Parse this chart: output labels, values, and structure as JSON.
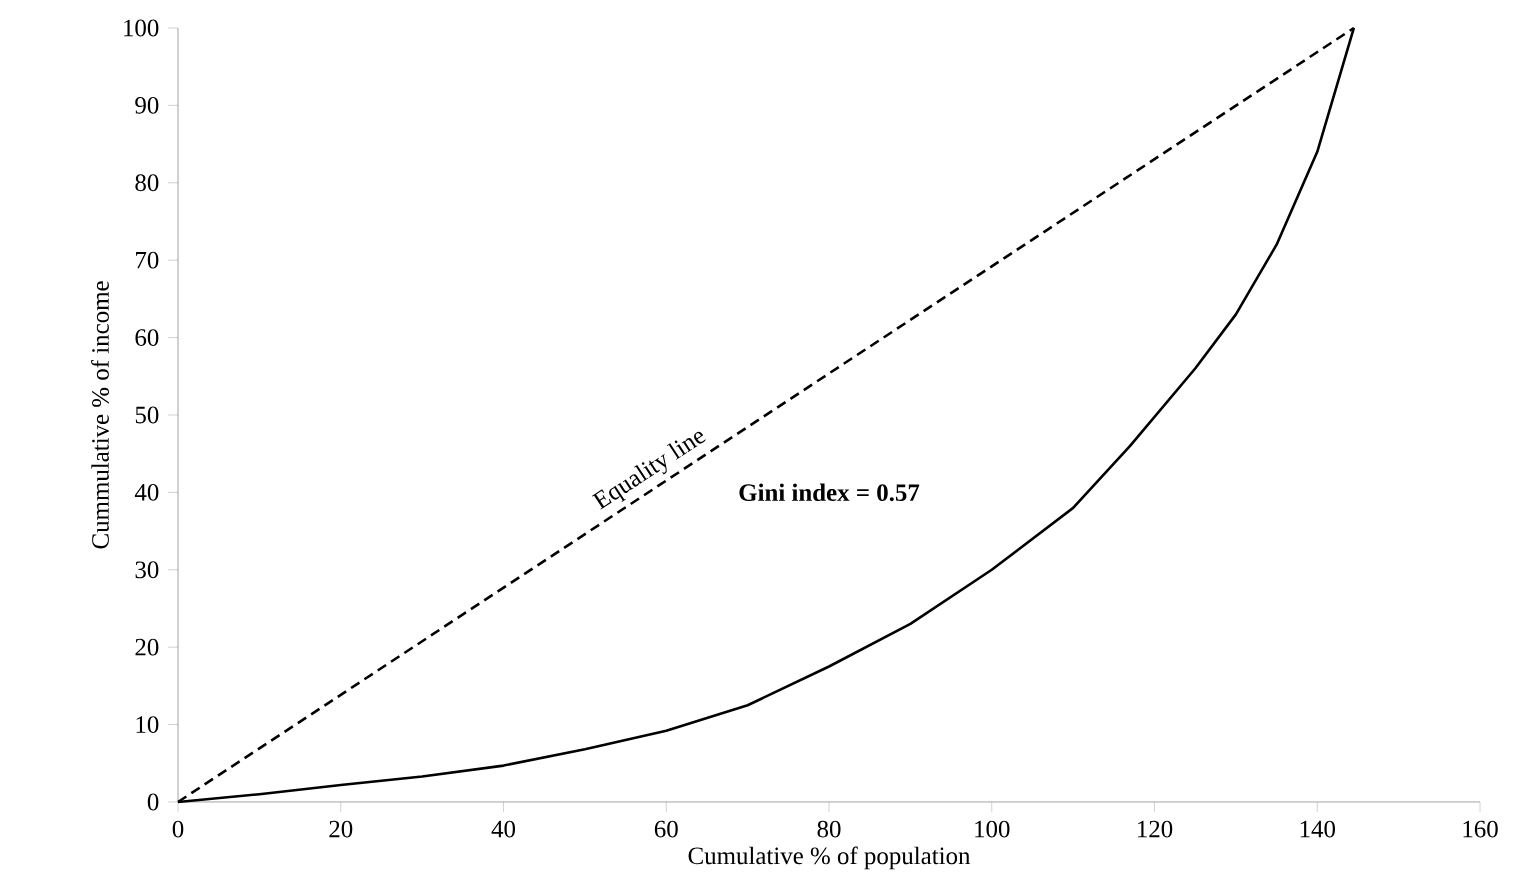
{
  "chart_data": {
    "type": "line",
    "xlabel": "Cumulative % of population",
    "ylabel": "Cummulative % of income",
    "xlim": [
      0,
      160
    ],
    "xticks": [
      0,
      20,
      40,
      60,
      80,
      100,
      120,
      140,
      160
    ],
    "ylim": [
      0,
      100
    ],
    "yticks": [
      0,
      10,
      20,
      30,
      40,
      50,
      60,
      70,
      80,
      90,
      100
    ],
    "grid": false,
    "legend": false,
    "marker": "none",
    "annotations": [
      "**Gini index = 0.57**"
    ],
    "series": [
      {
        "color": "#000000",
        "line_style": "solid",
        "x": [
          0,
          10,
          20,
          30,
          40,
          50,
          60,
          70,
          80,
          90,
          100,
          110,
          117,
          125,
          130,
          135,
          140,
          144.5
        ],
        "values": [
          0,
          1,
          2.2,
          3.3,
          4.7,
          6.8,
          9.2,
          12.5,
          17.5,
          23,
          30,
          38,
          46,
          56,
          63,
          72,
          84,
          100
        ]
      },
      {
        "name": "Equality line",
        "color": "#000000",
        "line_style": "dashed",
        "x": [
          0,
          144.5
        ],
        "values": [
          0,
          100
        ]
      }
    ]
  }
}
